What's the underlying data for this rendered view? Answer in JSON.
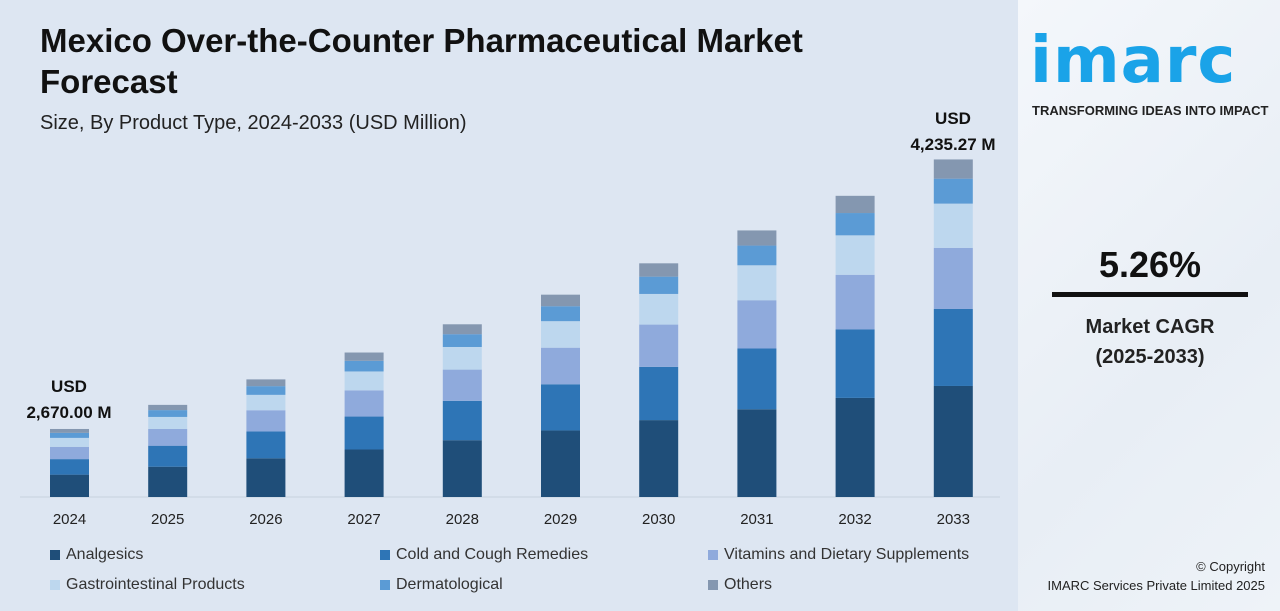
{
  "chart_data": {
    "type": "bar",
    "stacked": true,
    "title": "Mexico Over-the-Counter Pharmaceutical Market Forecast",
    "subtitle": "Size, By Product Type, 2024-2033 (USD Million)",
    "categories": [
      "2024",
      "2025",
      "2026",
      "2027",
      "2028",
      "2029",
      "2030",
      "2031",
      "2032",
      "2033"
    ],
    "totals": [
      2670.0,
      2810,
      2958,
      3114,
      3278,
      3450,
      3632,
      3823,
      4024,
      4235.27
    ],
    "series": [
      {
        "name": "Analgesics",
        "color": "#1f4e79",
        "values": [
          878,
          924,
          973,
          1024,
          1078,
          1135,
          1195,
          1258,
          1324,
          1393
        ]
      },
      {
        "name": "Cold and Cough Remedies",
        "color": "#2e75b6",
        "values": [
          609,
          641,
          674,
          710,
          747,
          787,
          828,
          872,
          917,
          966
        ]
      },
      {
        "name": "Vitamins and Dietary Supplements",
        "color": "#8faadc",
        "values": [
          483,
          509,
          535,
          564,
          593,
          624,
          657,
          692,
          728,
          767
        ]
      },
      {
        "name": "Gastrointestinal Products",
        "color": "#bdd7ee",
        "values": [
          350,
          368,
          387,
          408,
          429,
          452,
          476,
          501,
          527,
          555
        ]
      },
      {
        "name": "Dermatological",
        "color": "#5b9bd5",
        "values": [
          198,
          208,
          219,
          230,
          243,
          255,
          269,
          283,
          298,
          313
        ]
      },
      {
        "name": "Others",
        "color": "#8497b0",
        "values": [
          152,
          160,
          170,
          178,
          188,
          197,
          207,
          217,
          230,
          241.27
        ]
      }
    ],
    "annotations": {
      "first": [
        "USD",
        "2,670.00 M"
      ],
      "last": [
        "USD",
        "4,235.27 M"
      ]
    },
    "legend": "bottom",
    "grid": false
  },
  "brand": {
    "logo": "imarc",
    "tagline": "TRANSFORMING IDEAS INTO IMPACT"
  },
  "cagr": {
    "value": "5.26%",
    "label": "Market CAGR",
    "period": "(2025-2033)"
  },
  "copyright": [
    "© Copyright",
    "IMARC Services Private Limited 2025"
  ]
}
